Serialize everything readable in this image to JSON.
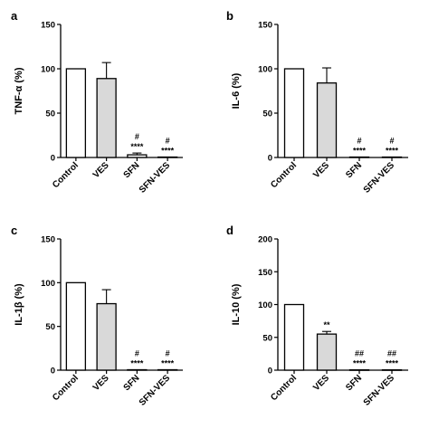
{
  "chart_data": [
    {
      "type": "bar",
      "panel": "a",
      "ylabel": "TNF-α (%)",
      "ylim": [
        0,
        150
      ],
      "yticks": [
        "0",
        "50",
        "100",
        "150"
      ],
      "categories": [
        "Control",
        "VES",
        "SFN",
        "SFN-VES"
      ],
      "values": [
        100,
        89,
        3,
        0.5
      ],
      "errors": [
        0,
        18,
        2,
        0
      ],
      "fills": [
        "#ffffff",
        "#d9d9d9",
        "#ffffff",
        "#ffffff"
      ],
      "annotations": [
        [],
        [],
        [
          "#",
          "****"
        ],
        [
          "#",
          "****"
        ]
      ]
    },
    {
      "type": "bar",
      "panel": "b",
      "ylabel": "IL-6 (%)",
      "ylim": [
        0,
        150
      ],
      "yticks": [
        "0",
        "50",
        "100",
        "150"
      ],
      "categories": [
        "Control",
        "VES",
        "SFN",
        "SFN-VES"
      ],
      "values": [
        100,
        84,
        0.5,
        0.5
      ],
      "errors": [
        0,
        17,
        0,
        0
      ],
      "fills": [
        "#ffffff",
        "#d9d9d9",
        "#ffffff",
        "#ffffff"
      ],
      "annotations": [
        [],
        [],
        [
          "#",
          "****"
        ],
        [
          "#",
          "****"
        ]
      ]
    },
    {
      "type": "bar",
      "panel": "c",
      "ylabel": "IL-1β (%)",
      "ylim": [
        0,
        150
      ],
      "yticks": [
        "0",
        "50",
        "100",
        "150"
      ],
      "categories": [
        "Control",
        "VES",
        "SFN",
        "SFN-VES"
      ],
      "values": [
        100,
        76,
        0.5,
        0.5
      ],
      "errors": [
        0,
        16,
        0,
        0
      ],
      "fills": [
        "#ffffff",
        "#d9d9d9",
        "#ffffff",
        "#ffffff"
      ],
      "annotations": [
        [],
        [],
        [
          "#",
          "****"
        ],
        [
          "#",
          "****"
        ]
      ]
    },
    {
      "type": "bar",
      "panel": "d",
      "ylabel": "IL-10 (%)",
      "ylim": [
        0,
        200
      ],
      "yticks": [
        "0",
        "50",
        "100",
        "150",
        "200"
      ],
      "categories": [
        "Control",
        "VES",
        "SFN",
        "SFN-VES"
      ],
      "values": [
        100,
        55,
        0.5,
        0.5
      ],
      "errors": [
        0,
        4,
        0,
        0
      ],
      "fills": [
        "#ffffff",
        "#d9d9d9",
        "#ffffff",
        "#ffffff"
      ],
      "annotations": [
        [],
        [
          "**"
        ],
        [
          "##",
          "****"
        ],
        [
          "##",
          "****"
        ]
      ]
    }
  ]
}
